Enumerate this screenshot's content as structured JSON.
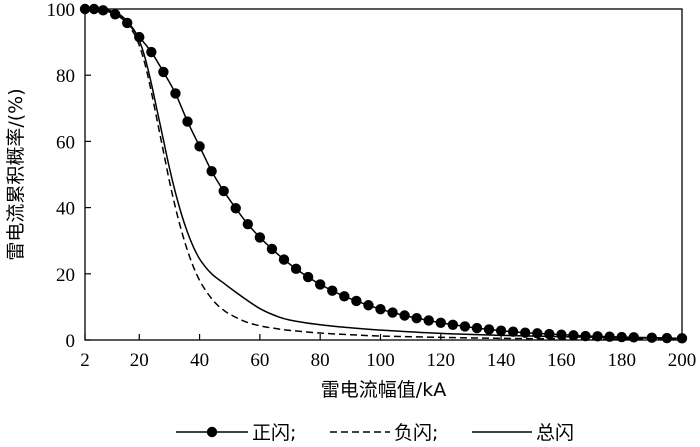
{
  "chart_data": {
    "type": "line",
    "title": "",
    "xlabel": "雷电流幅值/kA",
    "ylabel": "雷电流累积概率/(%)",
    "xlim": [
      2,
      200
    ],
    "ylim": [
      0,
      100
    ],
    "xticks": [
      "2",
      "20",
      "40",
      "60",
      "80",
      "100",
      "120",
      "140",
      "160",
      "180",
      "200"
    ],
    "xtick_values": [
      2,
      20,
      40,
      60,
      80,
      100,
      120,
      140,
      160,
      180,
      200
    ],
    "yticks": [
      "0",
      "20",
      "40",
      "60",
      "80",
      "100"
    ],
    "ytick_values": [
      0,
      20,
      40,
      60,
      80,
      100
    ],
    "grid": false,
    "legend_position": "bottom",
    "legend": [
      {
        "label": "正闪;",
        "style": "solid-with-dots"
      },
      {
        "label": "负闪;",
        "style": "dashed"
      },
      {
        "label": "总闪",
        "style": "solid"
      }
    ],
    "series": [
      {
        "name": "正闪",
        "style": "solid-with-dots",
        "color": "#000000",
        "x": [
          2,
          5,
          8,
          12,
          16,
          20,
          24,
          28,
          32,
          36,
          40,
          44,
          48,
          52,
          56,
          60,
          64,
          68,
          72,
          76,
          80,
          84,
          88,
          92,
          96,
          100,
          104,
          108,
          112,
          116,
          120,
          124,
          128,
          132,
          136,
          140,
          144,
          148,
          152,
          156,
          160,
          164,
          168,
          172,
          176,
          180,
          184,
          190,
          195,
          200
        ],
        "y": [
          100,
          100,
          99.6,
          98.4,
          95.8,
          91.5,
          87,
          81,
          74.5,
          66,
          58.5,
          51,
          45,
          39.8,
          35,
          31,
          27.5,
          24.3,
          21.5,
          19,
          16.8,
          14.9,
          13.2,
          11.8,
          10.5,
          9.3,
          8.3,
          7.4,
          6.6,
          5.9,
          5.2,
          4.6,
          4.1,
          3.6,
          3.2,
          2.8,
          2.5,
          2.2,
          2.0,
          1.8,
          1.6,
          1.4,
          1.2,
          1.1,
          1.0,
          0.9,
          0.8,
          0.7,
          0.6,
          0.5
        ]
      },
      {
        "name": "负闪",
        "style": "dashed",
        "color": "#000000",
        "x": [
          2,
          6,
          10,
          14,
          18,
          20,
          22,
          24,
          26,
          28,
          30,
          32,
          34,
          36,
          38,
          40,
          42,
          44,
          46,
          48,
          50,
          55,
          60,
          65,
          70,
          80,
          90,
          100,
          120,
          140,
          160,
          180,
          200
        ],
        "y": [
          100,
          100,
          99.5,
          97.5,
          93,
          89,
          83,
          75,
          66,
          57,
          48,
          40,
          33,
          27,
          22,
          18,
          15,
          12.5,
          10.5,
          9,
          7.8,
          5.6,
          4.3,
          3.5,
          2.9,
          2.1,
          1.6,
          1.2,
          0.8,
          0.5,
          0.35,
          0.25,
          0.2
        ]
      },
      {
        "name": "总闪",
        "style": "solid",
        "color": "#000000",
        "x": [
          2,
          6,
          10,
          14,
          18,
          20,
          22,
          24,
          26,
          28,
          30,
          32,
          34,
          36,
          38,
          40,
          42,
          44,
          46,
          48,
          50,
          55,
          60,
          65,
          70,
          80,
          90,
          100,
          120,
          140,
          160,
          180,
          200
        ],
        "y": [
          100,
          100,
          99.6,
          98,
          94,
          90.5,
          85,
          77.5,
          69,
          60.5,
          52,
          44.5,
          38,
          32.5,
          28,
          24.5,
          22,
          20,
          18.5,
          17.2,
          15.8,
          12.5,
          9.5,
          7.4,
          6,
          4.6,
          3.7,
          3.0,
          2.0,
          1.4,
          1.0,
          0.7,
          0.5
        ]
      }
    ]
  }
}
